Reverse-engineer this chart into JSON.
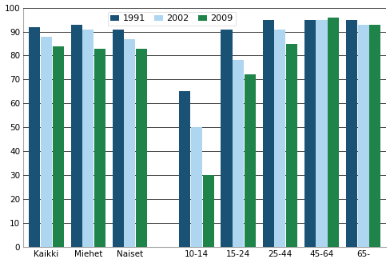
{
  "categories": [
    "Kaikki",
    "Miehet",
    "Naiset",
    "10-14",
    "15-24",
    "25-44",
    "45-64",
    "65-"
  ],
  "series": {
    "1991": [
      92,
      93,
      91,
      65,
      91,
      95,
      95,
      95
    ],
    "2002": [
      88,
      91,
      87,
      50,
      78,
      91,
      95,
      93
    ],
    "2009": [
      84,
      83,
      83,
      30,
      72,
      85,
      96,
      93
    ]
  },
  "colors": {
    "1991": "#1A5276",
    "2002": "#AED6F1",
    "2009": "#1E8449"
  },
  "ylim": [
    0,
    100
  ],
  "yticks": [
    0,
    10,
    20,
    30,
    40,
    50,
    60,
    70,
    80,
    90,
    100
  ],
  "legend_labels": [
    "1991",
    "2002",
    "2009"
  ],
  "bar_width": 0.28,
  "background_color": "#FFFFFF",
  "grid_color": "#000000",
  "spine_color": "#AAAAAA"
}
